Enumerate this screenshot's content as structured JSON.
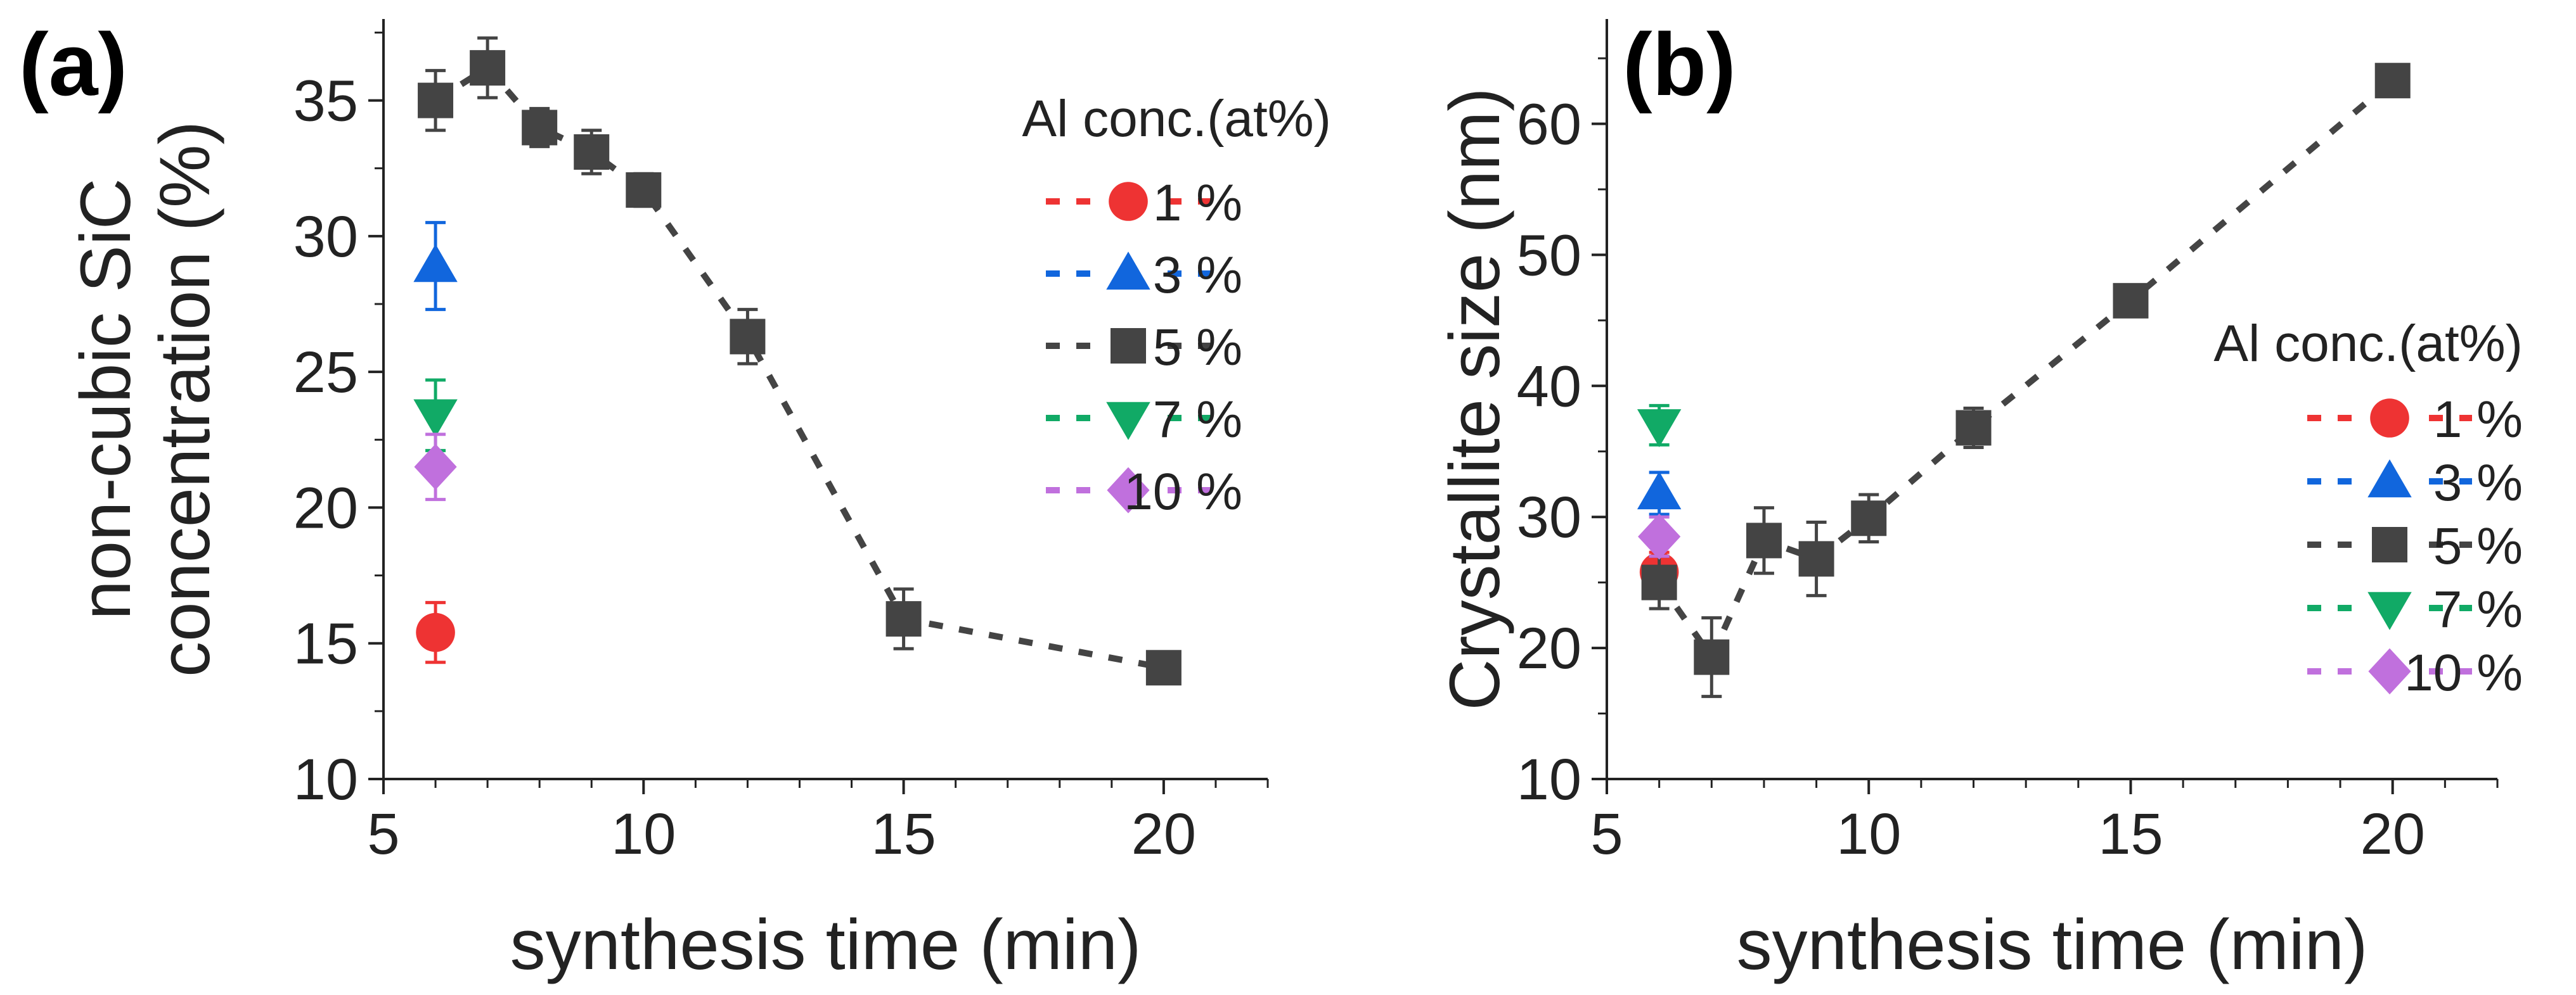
{
  "chart_data": [
    {
      "type": "scatter",
      "panel_label": "(a)",
      "xlabel": "synthesis time (min)",
      "ylabel_lines": [
        "non-cubic SiC",
        "concentration (%)"
      ],
      "xlim": [
        5,
        22
      ],
      "ylim": [
        10,
        38
      ],
      "xticks": [
        5,
        10,
        15,
        20
      ],
      "yticks": [
        10,
        15,
        20,
        25,
        30,
        35
      ],
      "legend_title": "Al conc.(at%)",
      "legend_position": "top-right",
      "series": [
        {
          "name": "1 %",
          "marker": "circle",
          "color": "#ee3333",
          "points": [
            {
              "x": 6,
              "y": 15.4,
              "err": 1.1
            }
          ]
        },
        {
          "name": "3 %",
          "marker": "triangle-up",
          "color": "#1166dd",
          "points": [
            {
              "x": 6,
              "y": 28.9,
              "err": 1.6
            }
          ]
        },
        {
          "name": "5 %",
          "marker": "square",
          "color": "#444444",
          "line": "dashed",
          "points": [
            {
              "x": 6,
              "y": 35.0,
              "err": 1.1
            },
            {
              "x": 7,
              "y": 36.2,
              "err": 1.1
            },
            {
              "x": 8,
              "y": 34.0,
              "err": 0.7
            },
            {
              "x": 9,
              "y": 33.1,
              "err": 0.8
            },
            {
              "x": 10,
              "y": 31.7,
              "err": 0.6
            },
            {
              "x": 12,
              "y": 26.3,
              "err": 1.0
            },
            {
              "x": 15,
              "y": 15.9,
              "err": 1.1
            },
            {
              "x": 20,
              "y": 14.1,
              "err": 0.3
            }
          ]
        },
        {
          "name": "7 %",
          "marker": "triangle-down",
          "color": "#11aa66",
          "points": [
            {
              "x": 6,
              "y": 23.4,
              "err": 1.3
            }
          ]
        },
        {
          "name": "10 %",
          "marker": "diamond",
          "color": "#c070dd",
          "points": [
            {
              "x": 6,
              "y": 21.5,
              "err": 1.2
            }
          ]
        }
      ]
    },
    {
      "type": "scatter",
      "panel_label": "(b)",
      "xlabel": "synthesis time (min)",
      "ylabel_lines": [
        "Crystallite size (nm)"
      ],
      "xlim": [
        5,
        22
      ],
      "ylim": [
        10,
        68
      ],
      "xticks": [
        5,
        10,
        15,
        20
      ],
      "yticks": [
        10,
        20,
        30,
        40,
        50,
        60
      ],
      "legend_title": "Al conc.(at%)",
      "legend_position": "right",
      "series": [
        {
          "name": "1 %",
          "marker": "circle",
          "color": "#ee3333",
          "points": [
            {
              "x": 6,
              "y": 25.8,
              "err": 1.5
            }
          ]
        },
        {
          "name": "3 %",
          "marker": "triangle-up",
          "color": "#1166dd",
          "points": [
            {
              "x": 6,
              "y": 31.8,
              "err": 1.6
            }
          ]
        },
        {
          "name": "5 %",
          "marker": "square",
          "color": "#444444",
          "line": "dashed",
          "points": [
            {
              "x": 6,
              "y": 25.0,
              "err": 2.0
            },
            {
              "x": 7,
              "y": 19.3,
              "err": 3.0
            },
            {
              "x": 8,
              "y": 28.2,
              "err": 2.5
            },
            {
              "x": 9,
              "y": 26.8,
              "err": 2.8
            },
            {
              "x": 10,
              "y": 29.9,
              "err": 1.8
            },
            {
              "x": 12,
              "y": 36.8,
              "err": 1.5
            },
            {
              "x": 15,
              "y": 46.5,
              "err": 1.0
            },
            {
              "x": 20,
              "y": 63.3,
              "err": 0.6
            }
          ]
        },
        {
          "name": "7 %",
          "marker": "triangle-down",
          "color": "#11aa66",
          "points": [
            {
              "x": 6,
              "y": 37.0,
              "err": 1.5
            }
          ]
        },
        {
          "name": "10 %",
          "marker": "diamond",
          "color": "#c070dd",
          "points": [
            {
              "x": 6,
              "y": 28.5,
              "err": 1.5
            }
          ]
        }
      ]
    }
  ]
}
